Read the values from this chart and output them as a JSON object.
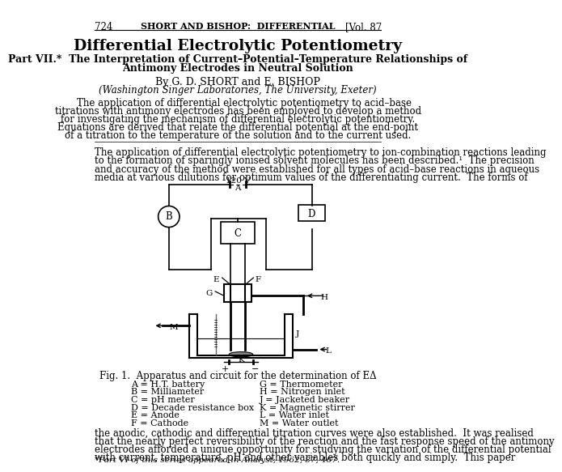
{
  "page_num": "724",
  "header_center": "SHORT AND BISHOP:  DIFFERENTIAL",
  "header_right": "[Vol. 87",
  "main_title": "Differential Electrolytic Potentiometry",
  "subtitle_line1": "Part VII.*  The Interpretation of Current–Potential–Temperature Relationships of",
  "subtitle_line2": "Antimony Electrodes in Neutral Solution",
  "byline": "By G. D. SHORT and E. BISHOP",
  "affiliation": "(Washington Singer Laboratories, The University, Exeter)",
  "abstract_lines": [
    "    The application of differential electrolytic potentiometry to acid–base",
    "titrations with antimony electrodes has been employed to develop a method",
    "for investigating the mechanism of differential electrolytic potentiometry.",
    "Equations are derived that relate the differential potential at the end-point",
    "of a titration to the temperature of the solution and to the current used."
  ],
  "body_text1_lines": [
    "The application of differential electrolytic potentiometry to ion-combination reactions leading",
    "to the formation of sparingly ionised solvent molecules has been described.¹  The precision",
    "and accuracy of the method were established for all types of acid–base reactions in aqueous",
    "media at various dilutions for optimum values of the differentiating current.  The forms of"
  ],
  "fig_caption": "Fig. 1.  Apparatus and circuit for the determination of EΔ",
  "legend_items": [
    [
      "A = H.T. battery",
      "G = Thermometer"
    ],
    [
      "B = Milliameter",
      "H = Nitrogen inlet"
    ],
    [
      "C = pH meter",
      "J = Jacketed beaker"
    ],
    [
      "D = Decade resistance box",
      "K = Magnetic stirrer"
    ],
    [
      "E = Anode",
      "L = Water inlet"
    ],
    [
      "F = Cathode",
      "M = Water outlet"
    ]
  ],
  "body_text2_lines": [
    "the anodic, cathodic and differential titration curves were also established.  It was realised",
    "that the nearly perfect reversibility of the reaction and the fast response speed of the antimony",
    "electrodes afforded a unique opportunity for studying the variation of the differential potential",
    "with current, temperature, pH and other variables both quickly and simply.  This paper"
  ],
  "footnote": "*Part VI of this series appeared in Analyst, 1962, 87, 467.",
  "bg_color": "#ffffff",
  "text_color": "#000000"
}
